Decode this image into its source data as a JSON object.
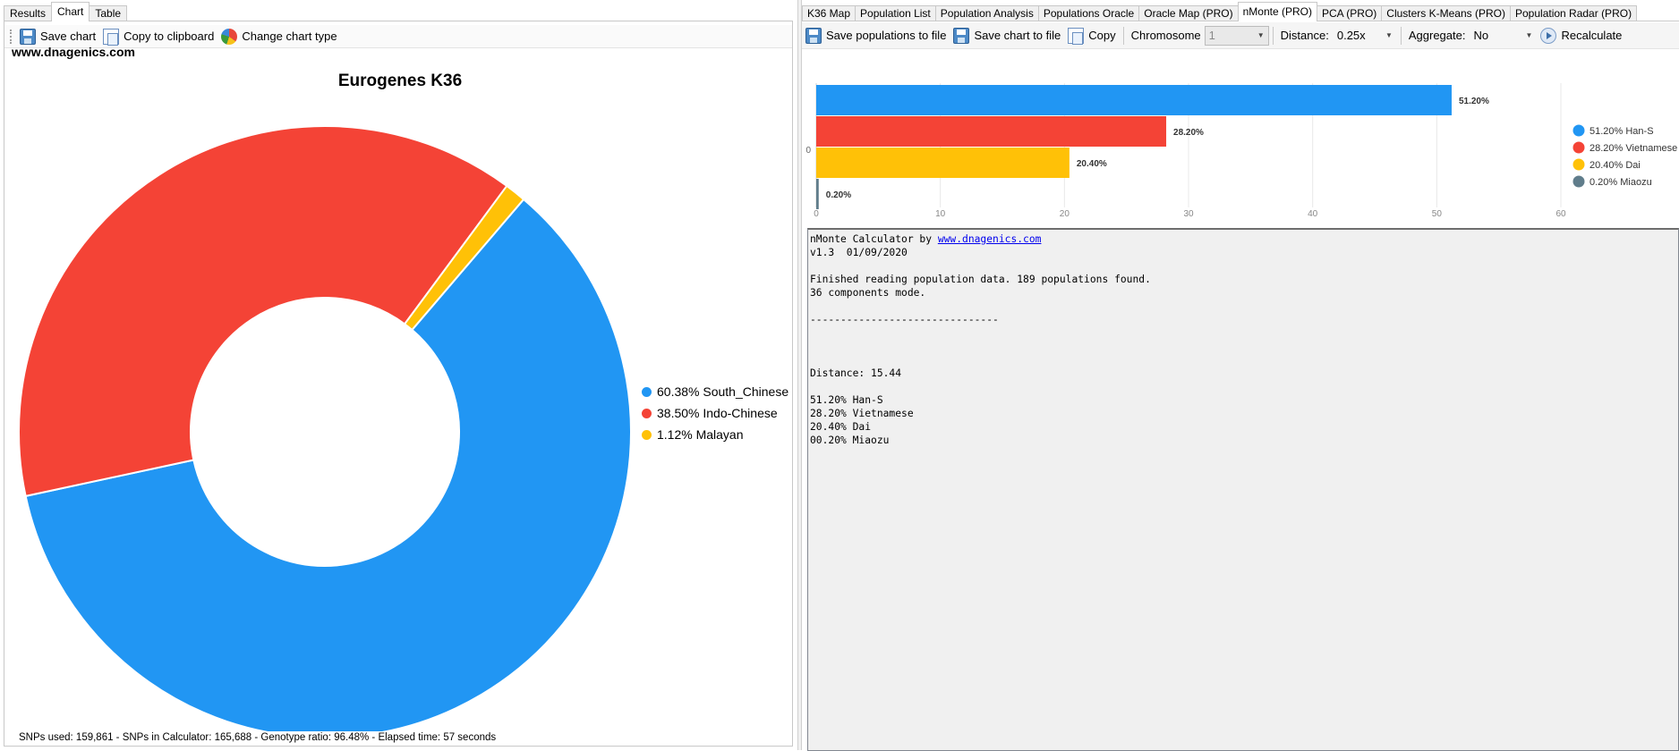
{
  "left": {
    "tabs": [
      {
        "label": "Results",
        "active": false
      },
      {
        "label": "Chart",
        "active": true
      },
      {
        "label": "Table",
        "active": false
      }
    ],
    "toolbar": {
      "save_chart": "Save chart",
      "copy_clipboard": "Copy to clipboard",
      "change_chart_type": "Change chart type"
    },
    "site": "www.dnagenics.com",
    "status": "SNPs used: 159,861 - SNPs in Calculator: 165,688 - Genotype ratio: 96.48% - Elapsed time: 57 seconds"
  },
  "right": {
    "tabs": [
      {
        "label": "K36 Map",
        "active": false
      },
      {
        "label": "Population List",
        "active": false
      },
      {
        "label": "Population Analysis",
        "active": false
      },
      {
        "label": "Populations Oracle",
        "active": false
      },
      {
        "label": "Oracle Map (PRO)",
        "active": false
      },
      {
        "label": "nMonte (PRO)",
        "active": true
      },
      {
        "label": "PCA (PRO)",
        "active": false
      },
      {
        "label": "Clusters K-Means (PRO)",
        "active": false
      },
      {
        "label": "Population Radar (PRO)",
        "active": false
      }
    ],
    "toolbar": {
      "save_populations": "Save populations to file",
      "save_chart": "Save chart to file",
      "copy": "Copy",
      "chromosome_label": "Chromosome",
      "chromosome_value": "1",
      "distance_label": "Distance:",
      "distance_value": "0.25x",
      "aggregate_label": "Aggregate:",
      "aggregate_value": "No",
      "recalculate": "Recalculate"
    },
    "output": {
      "header": "nMonte Calculator by ",
      "link": "www.dnagenics.com",
      "body": "v1.3  01/09/2020\n\nFinished reading population data. 189 populations found.\n36 components mode.\n\n-------------------------------\n\n\n\nDistance: 15.44\n\n51.20% Han-S\n28.20% Vietnamese\n20.40% Dai\n00.20% Miaozu"
    }
  },
  "colors": {
    "blue": "#2196f3",
    "red": "#f44336",
    "yellow": "#ffc107",
    "slate": "#607d8b"
  },
  "chart_data": [
    {
      "type": "pie",
      "title": "Eurogenes K36",
      "categories": [
        "South_Chinese",
        "Indo-Chinese",
        "Malayan"
      ],
      "values": [
        60.38,
        38.5,
        1.12
      ],
      "legend_labels": [
        "60.38% South_Chinese",
        "38.50% Indo-Chinese",
        "1.12% Malayan"
      ],
      "colors": [
        "#2196f3",
        "#f44336",
        "#ffc107"
      ],
      "legend": "right"
    },
    {
      "type": "bar",
      "orientation": "horizontal",
      "categories": [
        "Han-S",
        "Vietnamese",
        "Dai",
        "Miaozu"
      ],
      "values": [
        51.2,
        28.2,
        20.4,
        0.2
      ],
      "data_labels": [
        "51.20%",
        "28.20%",
        "20.40%",
        "0.20%"
      ],
      "legend_labels": [
        "51.20% Han-S",
        "28.20% Vietnamese",
        "20.40% Dai",
        "0.20% Miaozu"
      ],
      "colors": [
        "#2196f3",
        "#f44336",
        "#ffc107",
        "#607d8b"
      ],
      "xlim": [
        0,
        60
      ],
      "xticks": [
        0,
        10,
        20,
        30,
        40,
        50,
        60
      ],
      "y_axis_label": "0",
      "grid": true,
      "legend": "right"
    }
  ]
}
